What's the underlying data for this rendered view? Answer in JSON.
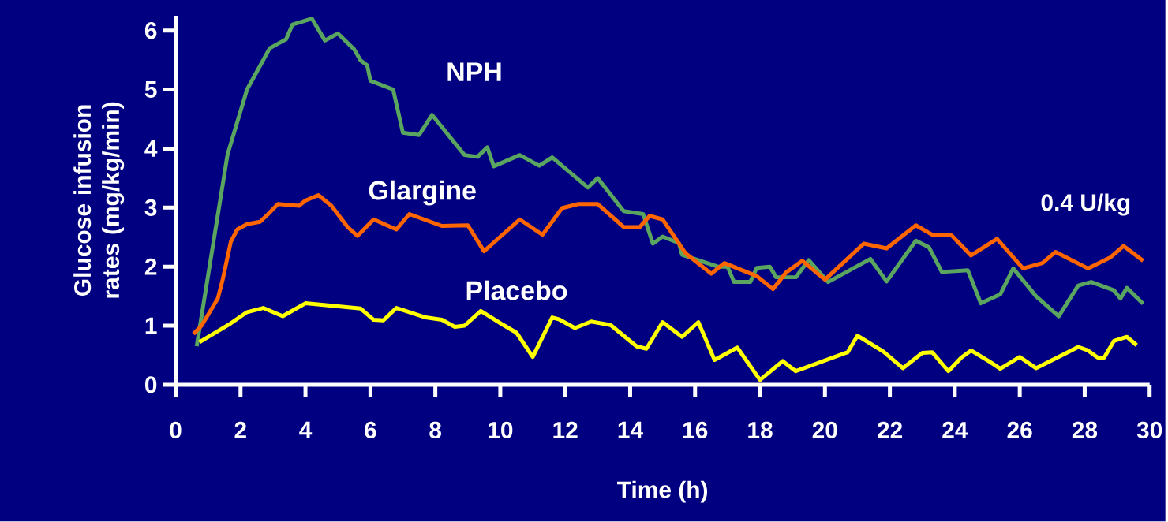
{
  "chart_data": {
    "type": "line",
    "xlabel": "Time (h)",
    "ylabel": "Glucose infusion rates (mg/kg/min)",
    "xlim": [
      0,
      30
    ],
    "ylim": [
      0,
      6.25
    ],
    "xticks": [
      0,
      2,
      4,
      6,
      8,
      10,
      12,
      14,
      16,
      18,
      20,
      22,
      24,
      26,
      28,
      30
    ],
    "yticks": [
      0,
      1,
      2,
      3,
      4,
      5,
      6
    ],
    "grid": false,
    "legend": false,
    "marker": "none",
    "line_style": "solid",
    "annotations": [
      "0.4 U/kg"
    ],
    "series": [
      {
        "name": "NPH",
        "color": "#5aa55f",
        "x": [
          0.65,
          1.6,
          2.2,
          2.9,
          3.4,
          3.6,
          4.2,
          4.6,
          5.0,
          5.5,
          5.7,
          5.9,
          6.0,
          6.7,
          7.0,
          7.5,
          7.9,
          8.9,
          9.3,
          9.6,
          9.8,
          10.6,
          11.2,
          11.6,
          12.7,
          13.0,
          13.8,
          14.4,
          14.7,
          15.0,
          15.5,
          15.6,
          16.7,
          17.0,
          17.2,
          17.7,
          17.9,
          18.3,
          18.5,
          19.1,
          19.5,
          20.1,
          21.4,
          21.9,
          22.8,
          23.2,
          23.6,
          24.4,
          24.8,
          25.4,
          25.8,
          26.5,
          27.2,
          27.8,
          28.2,
          28.9,
          29.1,
          29.3,
          29.8
        ],
        "values": [
          0.65,
          3.9,
          5.0,
          5.7,
          5.85,
          6.1,
          6.2,
          5.83,
          5.95,
          5.68,
          5.49,
          5.41,
          5.15,
          5.0,
          4.27,
          4.23,
          4.57,
          3.89,
          3.86,
          4.02,
          3.7,
          3.89,
          3.71,
          3.85,
          3.34,
          3.5,
          2.94,
          2.89,
          2.39,
          2.51,
          2.4,
          2.2,
          2.0,
          2.0,
          1.74,
          1.74,
          1.98,
          2.0,
          1.82,
          1.82,
          2.11,
          1.74,
          2.13,
          1.75,
          2.44,
          2.33,
          1.91,
          1.94,
          1.38,
          1.53,
          1.97,
          1.5,
          1.16,
          1.68,
          1.74,
          1.6,
          1.46,
          1.64,
          1.37
        ]
      },
      {
        "name": "Glargine",
        "color": "#ff6600",
        "x": [
          0.55,
          0.8,
          1.3,
          1.45,
          1.7,
          1.9,
          2.2,
          2.6,
          2.85,
          3.15,
          3.8,
          4.0,
          4.4,
          4.8,
          5.3,
          5.6,
          6.1,
          6.8,
          7.2,
          8.2,
          9.0,
          9.5,
          10.6,
          11.3,
          11.9,
          12.4,
          13.0,
          13.8,
          14.3,
          14.6,
          15.0,
          15.7,
          16.5,
          16.9,
          17.9,
          18.4,
          18.8,
          19.3,
          20.0,
          21.2,
          21.9,
          22.8,
          23.3,
          23.9,
          24.5,
          25.3,
          26.1,
          26.7,
          27.1,
          28.1,
          28.8,
          29.2,
          29.8
        ],
        "values": [
          0.86,
          1.0,
          1.46,
          1.78,
          2.42,
          2.63,
          2.72,
          2.76,
          2.89,
          3.06,
          3.03,
          3.12,
          3.21,
          3.03,
          2.67,
          2.52,
          2.8,
          2.63,
          2.89,
          2.69,
          2.7,
          2.26,
          2.8,
          2.54,
          2.99,
          3.06,
          3.06,
          2.67,
          2.67,
          2.86,
          2.8,
          2.23,
          1.88,
          2.06,
          1.84,
          1.62,
          1.9,
          2.1,
          1.78,
          2.39,
          2.31,
          2.7,
          2.54,
          2.53,
          2.19,
          2.47,
          1.97,
          2.06,
          2.25,
          1.97,
          2.16,
          2.35,
          2.1
        ]
      },
      {
        "name": "Placebo",
        "color": "#ffff00",
        "x": [
          0.73,
          1.7,
          2.2,
          2.7,
          3.3,
          4.0,
          5.7,
          6.1,
          6.4,
          6.8,
          7.7,
          8.2,
          8.6,
          8.9,
          9.4,
          10.1,
          10.5,
          11.0,
          11.6,
          11.8,
          12.3,
          12.8,
          13.4,
          14.2,
          14.5,
          15.0,
          15.6,
          16.1,
          16.6,
          17.3,
          18.0,
          18.7,
          19.1,
          20.7,
          21.0,
          21.8,
          22.4,
          23.0,
          23.3,
          23.8,
          24.2,
          24.5,
          25.1,
          25.4,
          26.0,
          26.5,
          27.3,
          27.8,
          28.1,
          28.4,
          28.6,
          28.9,
          29.3,
          29.6
        ],
        "values": [
          0.72,
          1.04,
          1.23,
          1.3,
          1.16,
          1.38,
          1.29,
          1.1,
          1.09,
          1.3,
          1.14,
          1.1,
          0.98,
          1.0,
          1.25,
          1.01,
          0.88,
          0.47,
          1.14,
          1.11,
          0.96,
          1.07,
          1.01,
          0.65,
          0.61,
          1.06,
          0.81,
          1.06,
          0.42,
          0.63,
          0.08,
          0.4,
          0.23,
          0.55,
          0.83,
          0.56,
          0.28,
          0.54,
          0.55,
          0.23,
          0.46,
          0.58,
          0.38,
          0.27,
          0.47,
          0.28,
          0.5,
          0.64,
          0.58,
          0.46,
          0.46,
          0.74,
          0.81,
          0.67
        ]
      }
    ]
  }
}
